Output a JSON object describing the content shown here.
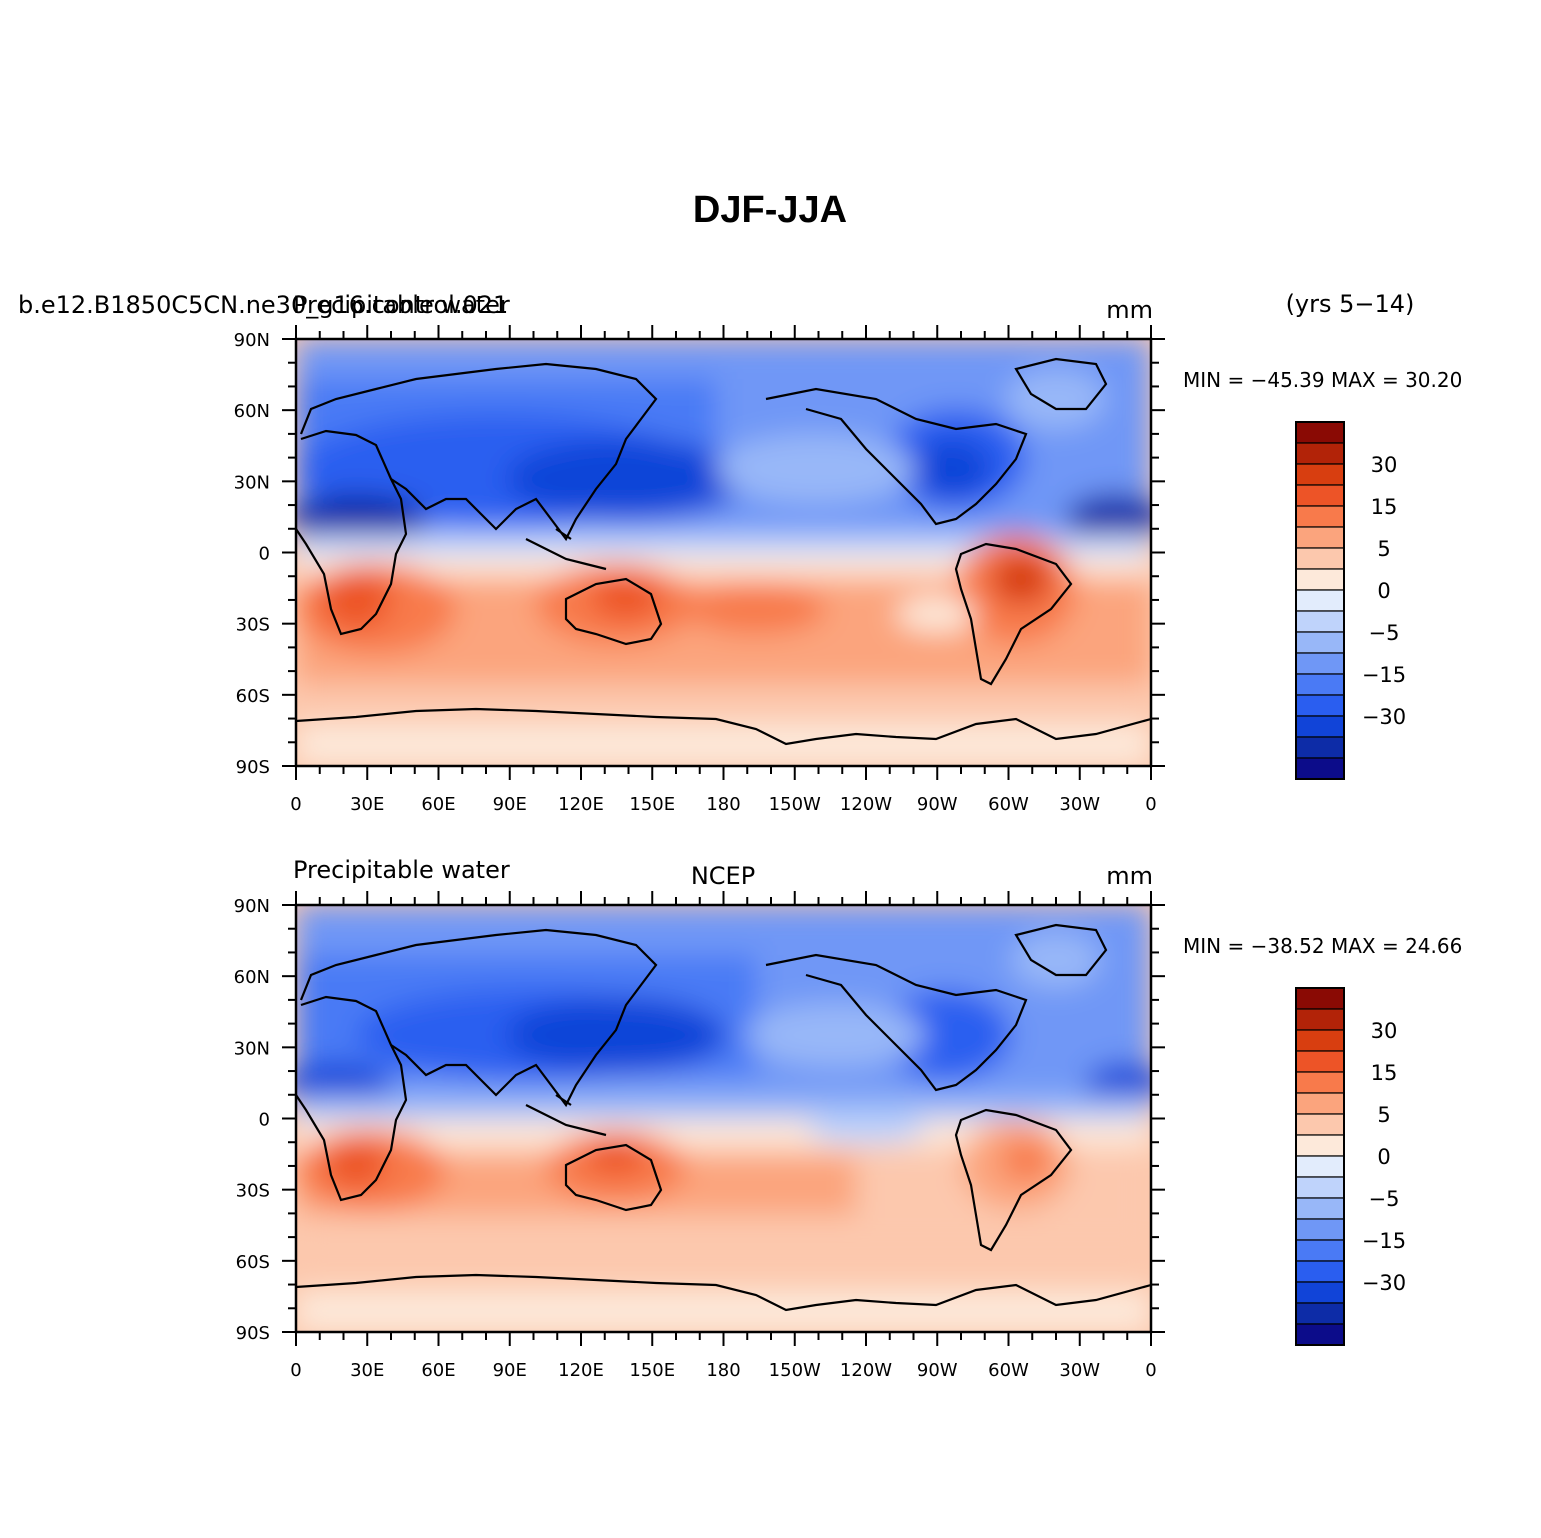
{
  "figure": {
    "title": "DJF-JJA"
  },
  "colorbar": {
    "levels": [
      "-45",
      "-40",
      "-30",
      "-20",
      "-15",
      "-10",
      "-5",
      "-2",
      "0",
      "2",
      "5",
      "10",
      "15",
      "20",
      "30",
      "40"
    ],
    "shown_labels": [
      "30",
      "15",
      "5",
      "0",
      "−5",
      "−15",
      "−30"
    ],
    "colors": [
      "#0c0c8a",
      "#0d2ca7",
      "#1144d8",
      "#2a5ef0",
      "#4a7af5",
      "#6f97f6",
      "#98b7f8",
      "#bfd3fb",
      "#e2ecfc",
      "#fde9da",
      "#fcc8ad",
      "#fba47d",
      "#f87a4b",
      "#ed5427",
      "#d83e10",
      "#b22308",
      "#8a0a04"
    ]
  },
  "panels": [
    {
      "left_label": "b.e12.B1850C5CN.ne30_g16.control.021",
      "left_label_overlay": "Precipitable water",
      "center_label": "",
      "right_label": "mm",
      "years_label": "(yrs 5−14)",
      "stats_text": "MIN = −45.39  MAX =  30.20",
      "xticks": [
        "0",
        "30E",
        "60E",
        "90E",
        "120E",
        "150E",
        "180",
        "150W",
        "120W",
        "90W",
        "60W",
        "30W",
        "0"
      ],
      "yticks": [
        "90N",
        "60N",
        "30N",
        "0",
        "30S",
        "60S",
        "90S"
      ]
    },
    {
      "left_label": "Precipitable water",
      "left_label_overlay": "",
      "center_label": "NCEP",
      "right_label": "mm",
      "years_label": "",
      "stats_text": "MIN = −38.52  MAX =  24.66",
      "xticks": [
        "0",
        "30E",
        "60E",
        "90E",
        "120E",
        "150E",
        "180",
        "150W",
        "120W",
        "90W",
        "60W",
        "30W",
        "0"
      ],
      "yticks": [
        "90N",
        "60N",
        "30N",
        "0",
        "30S",
        "60S",
        "90S"
      ]
    }
  ],
  "chart_data": [
    {
      "type": "heatmap",
      "title": "DJF-JJA",
      "subtitle": "b.e12.B1850C5CN.ne30_g16.control.021",
      "variable": "Precipitable water",
      "units": "mm",
      "period": "(yrs 5−14)",
      "min": -45.39,
      "max": 30.2,
      "xlim": [
        0,
        360
      ],
      "ylim": [
        -90,
        90
      ]
    },
    {
      "type": "heatmap",
      "title": "NCEP",
      "variable": "Precipitable water",
      "units": "mm",
      "min": -38.52,
      "max": 24.66,
      "xlim": [
        0,
        360
      ],
      "ylim": [
        -90,
        90
      ]
    }
  ]
}
